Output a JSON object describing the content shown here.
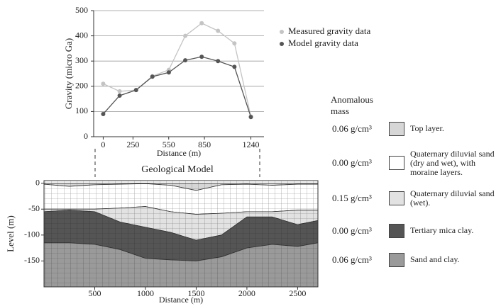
{
  "chart_data": [
    {
      "type": "line",
      "y_label": "Gravity (micro Ga)",
      "x_label": "Distance (m)",
      "x": [
        0,
        138,
        276,
        413,
        551,
        689,
        827,
        964,
        1102,
        1240
      ],
      "xlim": [
        -80,
        1350
      ],
      "xticks": [
        0,
        250,
        550,
        850,
        1240
      ],
      "ylim": [
        0,
        500
      ],
      "yticks": [
        0,
        100,
        200,
        300,
        400,
        500
      ],
      "grid": true,
      "legend": "upper right",
      "series": [
        {
          "name": "Measured gravity data",
          "color": "#c4c4c4",
          "values": [
            210,
            180,
            185,
            240,
            265,
            400,
            450,
            420,
            370,
            80
          ]
        },
        {
          "name": "Model gravity data",
          "color": "#555555",
          "values": [
            90,
            163,
            185,
            238,
            255,
            303,
            317,
            300,
            277,
            78
          ]
        }
      ]
    },
    {
      "type": "section",
      "title": "Geological Model",
      "y_label": "Level (m)",
      "x_label": "Distance (m)",
      "legend_title": "Anomalous mass",
      "x": [
        0,
        250,
        500,
        750,
        1000,
        1250,
        1500,
        1750,
        2000,
        2250,
        2500,
        2700
      ],
      "xlim": [
        0,
        2700
      ],
      "xticks": [
        500,
        1000,
        1500,
        2000,
        2500
      ],
      "ylim": [
        -200,
        5
      ],
      "yticks": [
        0,
        -50,
        -100,
        -150
      ],
      "series": [
        {
          "name": "Top layer.",
          "density": "0.06 g/cm³",
          "color": "#d6d6d6",
          "values": [
            -2,
            -6,
            -3,
            -2,
            -1,
            -4,
            -14,
            -3,
            -2,
            -4,
            -2,
            -2
          ]
        },
        {
          "name": "Quaternary diluvial sand (dry and wet), with moraine layers.",
          "density": "0.00 g/cm³",
          "color": "#ffffff",
          "values": [
            -50,
            -50,
            -50,
            -48,
            -45,
            -55,
            -60,
            -58,
            -55,
            -55,
            -52,
            -52
          ]
        },
        {
          "name": "Quaternary diluvial sand (wet).",
          "density": "0.15 g/cm³",
          "color": "#e2e2e2",
          "values": [
            -55,
            -52,
            -55,
            -75,
            -85,
            -95,
            -110,
            -100,
            -65,
            -65,
            -80,
            -72
          ]
        },
        {
          "name": "Tertiary mica clay.",
          "density": "0.00 g/cm³",
          "color": "#555555",
          "values": [
            -115,
            -115,
            -118,
            -128,
            -145,
            -148,
            -150,
            -142,
            -125,
            -118,
            -122,
            -115
          ]
        },
        {
          "name": "Sand and clay.",
          "density": "0.06 g/cm³",
          "color": "#9a9a9a",
          "values": [
            -200,
            -200,
            -200,
            -200,
            -200,
            -200,
            -200,
            -200,
            -200,
            -200,
            -200,
            -200
          ]
        }
      ]
    }
  ]
}
